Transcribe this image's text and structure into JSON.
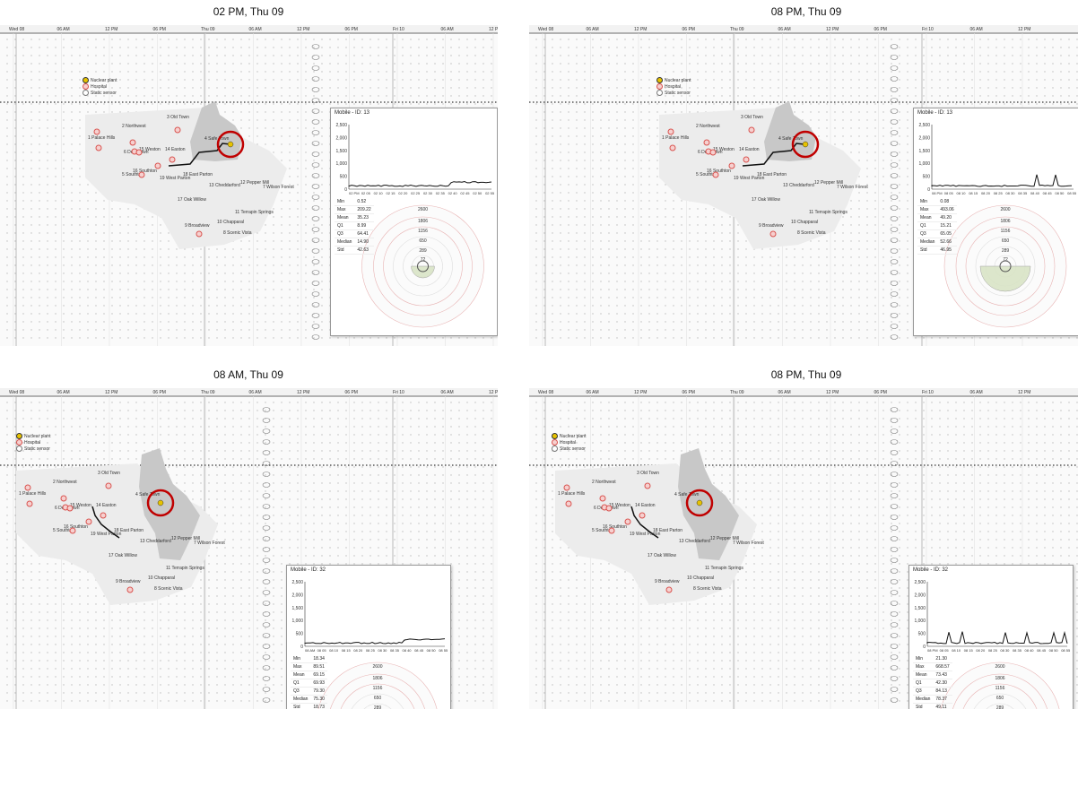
{
  "panels": [
    {
      "title": "02 PM, Thu 09",
      "mobile_id": "Mobile - ID: 13",
      "stats": [
        [
          "Min",
          "0.52"
        ],
        [
          "Max",
          "209.22"
        ],
        [
          "Mean",
          "35.23"
        ],
        [
          "Q1",
          "8.99"
        ],
        [
          "Q3",
          "64.41"
        ],
        [
          "Median",
          "14.90"
        ],
        [
          "Std",
          "42.63"
        ]
      ]
    },
    {
      "title": "08 PM, Thu 09",
      "mobile_id": "Mobile - ID: 13",
      "stats": [
        [
          "Min",
          "0.08"
        ],
        [
          "Max",
          "493.06"
        ],
        [
          "Mean",
          "49.20"
        ],
        [
          "Q1",
          "15.21"
        ],
        [
          "Q3",
          "65.05"
        ],
        [
          "Median",
          "52.66"
        ],
        [
          "Std",
          "46.95"
        ]
      ]
    },
    {
      "title": "08 AM, Thu 09",
      "mobile_id": "Mobile - ID: 32",
      "stats": [
        [
          "Min",
          "18.34"
        ],
        [
          "Max",
          "89.51"
        ],
        [
          "Mean",
          "69.15"
        ],
        [
          "Q1",
          "69.93"
        ],
        [
          "Q3",
          "79.30"
        ],
        [
          "Median",
          "75.30"
        ],
        [
          "Std",
          "18.73"
        ]
      ]
    },
    {
      "title": "08 PM, Thu 09",
      "mobile_id": "Mobile - ID: 32",
      "stats": [
        [
          "Min",
          "21.30"
        ],
        [
          "Max",
          "668.57"
        ],
        [
          "Mean",
          "73.43"
        ],
        [
          "Q1",
          "42.30"
        ],
        [
          "Q3",
          "84.13"
        ],
        [
          "Median",
          "78.37"
        ],
        [
          "Std",
          "49.11"
        ]
      ]
    }
  ],
  "time_axis": [
    "Wed 08",
    "06 AM",
    "12 PM",
    "06 PM",
    "Thu 09",
    "06 AM",
    "12 PM",
    "06 PM",
    "Fri 10",
    "06 AM",
    "12 PM"
  ],
  "legend": [
    "Nuclear plant",
    "Hospital",
    "Static sensor"
  ],
  "towns": [
    "3 Old Town",
    "2 Northwest",
    "1 Palace Hills",
    "15 Weston",
    "6 Downtown",
    "14 Easton",
    "4 Safe Town",
    "5 Southton",
    "16 Southton",
    "19 West Parton",
    "18 East Parton",
    "13 Cheddarford",
    "12 Pepper Mill",
    "7 Wilson Forest",
    "17 Oak Willow",
    "11 Terrapin Springs",
    "10 Chapparal",
    "9 Broadview",
    "8 Scenic Vista"
  ],
  "y_ticks": [
    "2,500",
    "2,000",
    "1,500",
    "1,000",
    "500",
    "0"
  ],
  "x_ticks_a": [
    "02 PM",
    "02 05",
    "02 10",
    "02 15",
    "02 20",
    "02 25",
    "02 30",
    "02 35",
    "02 40",
    "02 45",
    "02 50",
    "02 55"
  ],
  "x_ticks_b": [
    "08 PM",
    "08 05",
    "08 10",
    "08 15",
    "08 20",
    "08 25",
    "08 30",
    "08 35",
    "08 40",
    "08 45",
    "08 50",
    "08 55"
  ],
  "x_ticks_c": [
    "08 AM",
    "08 05",
    "08 10",
    "08 15",
    "08 20",
    "08 25",
    "08 30",
    "08 35",
    "08 40",
    "08 45",
    "08 50",
    "08 55"
  ],
  "ring_labels": [
    "2600",
    "1806",
    "1156",
    "650",
    "289",
    "72"
  ],
  "colors": {
    "hospital": "#d9534f",
    "nuclear": "#e6c200",
    "highlight": "#c00000",
    "land": "#d0d0d0",
    "grid": "#cccccc"
  }
}
